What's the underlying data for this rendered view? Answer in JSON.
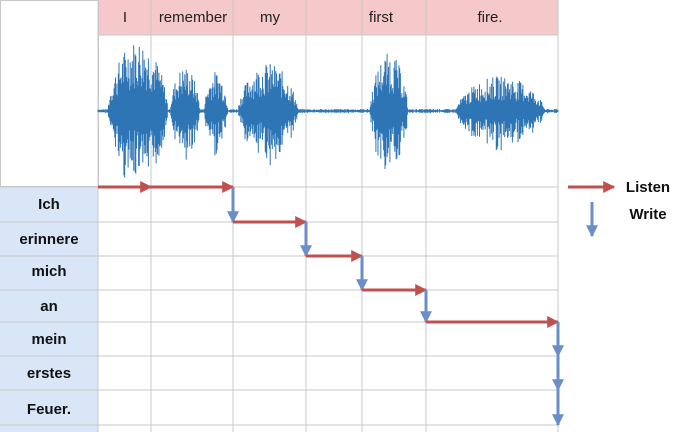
{
  "header": {
    "words": [
      "I",
      "remember",
      "my",
      "first",
      "fire."
    ]
  },
  "rows": {
    "words": [
      "Ich",
      "erinnere",
      "mich",
      "an",
      "mein",
      "erstes",
      "Feuer."
    ]
  },
  "legend": {
    "listen": "Listen",
    "write": "Write"
  }
}
